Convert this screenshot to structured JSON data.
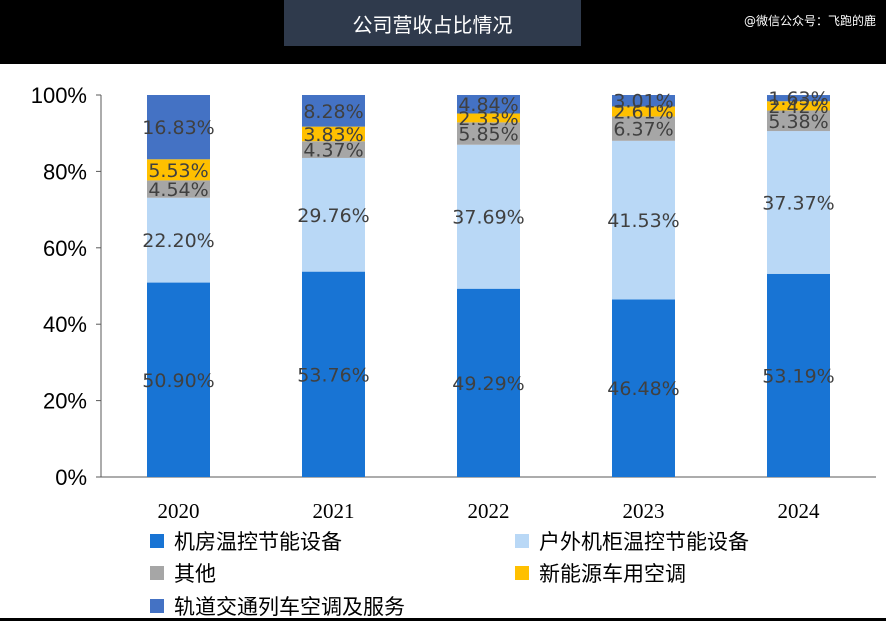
{
  "header": {
    "title": "公司营收占比情况",
    "watermark": "@微信公众号：飞跑的鹿"
  },
  "chart_data": {
    "type": "bar",
    "stacked": true,
    "categories": [
      "2020",
      "2021",
      "2022",
      "2023",
      "2024"
    ],
    "series": [
      {
        "name": "机房温控节能设备",
        "color": "#1874d4",
        "values": [
          50.9,
          53.76,
          49.29,
          46.48,
          53.19
        ],
        "labels": [
          "50.90%",
          "53.76%",
          "49.29%",
          "46.48%",
          "53.19%"
        ]
      },
      {
        "name": "户外机柜温控节能设备",
        "color": "#b9d8f6",
        "values": [
          22.2,
          29.76,
          37.69,
          41.53,
          37.37
        ],
        "labels": [
          "22.20%",
          "29.76%",
          "37.69%",
          "41.53%",
          "37.37%"
        ]
      },
      {
        "name": "其他",
        "color": "#a6a6a6",
        "values": [
          4.54,
          4.37,
          5.85,
          6.37,
          5.38
        ],
        "labels": [
          "4.54%",
          "4.37%",
          "5.85%",
          "6.37%",
          "5.38%"
        ]
      },
      {
        "name": "新能源车用空调",
        "color": "#ffc000",
        "values": [
          5.53,
          3.83,
          2.33,
          2.61,
          2.42
        ],
        "labels": [
          "5.53%",
          "3.83%",
          "2.33%",
          "2.61%",
          "2.42%"
        ]
      },
      {
        "name": "轨道交通列车空调及服务",
        "color": "#4472c4",
        "values": [
          16.83,
          8.28,
          4.84,
          3.01,
          1.63
        ],
        "labels": [
          "16.83%",
          "8.28%",
          "4.84%",
          "3.01%",
          "1.63%"
        ]
      }
    ],
    "yticks": [
      "0%",
      "20%",
      "40%",
      "60%",
      "80%",
      "100%"
    ],
    "ylim": [
      0,
      100
    ],
    "grid": false,
    "legend_position": "bottom"
  }
}
